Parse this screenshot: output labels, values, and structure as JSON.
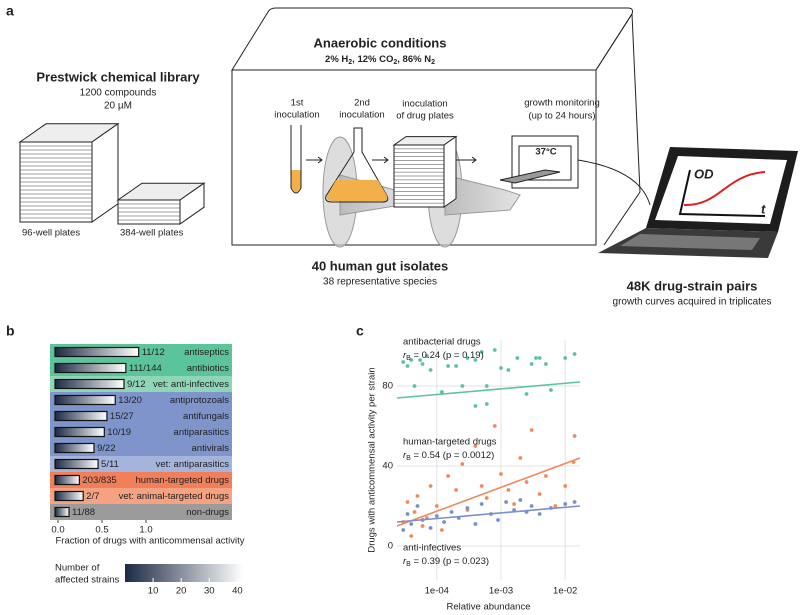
{
  "panel_a": {
    "label": "a",
    "library": {
      "title": "Prestwick chemical library",
      "lines": [
        "1200 compounds",
        "20 µM"
      ],
      "plates": [
        "96-well plates",
        "384-well plates"
      ]
    },
    "chamber": {
      "title": "Anaerobic conditions",
      "gases": [
        {
          "text": "2% H",
          "sub": "2"
        },
        {
          "text": ", 12% CO",
          "sub": "2"
        },
        {
          "text": ", 86% N",
          "sub": "2"
        }
      ]
    },
    "steps": [
      {
        "lines": [
          "1st",
          "inoculation"
        ]
      },
      {
        "lines": [
          "2nd",
          "inoculation"
        ]
      },
      {
        "lines": [
          "inoculation",
          "of drug plates"
        ]
      },
      {
        "lines": [
          "growth monitoring",
          "(up to 24 hours)"
        ]
      }
    ],
    "incubator": "37°C",
    "isolates": {
      "title": "40 human gut isolates",
      "subtitle": "38 representative species"
    },
    "output": {
      "title": "48K drug-strain pairs",
      "subtitle": "growth curves acquired in triplicates"
    },
    "plot_axes": {
      "y": "OD",
      "x": "t"
    }
  },
  "chart_data": [
    {
      "type": "bar",
      "label": "b",
      "orientation": "horizontal",
      "categories": [
        "antiseptics",
        "antibiotics",
        "vet: anti-infectives",
        "antiprotozoals",
        "antifungals",
        "antiparasitics",
        "antivirals",
        "vet: antiparasitics",
        "human-targeted drugs",
        "vet: animal-targeted drugs",
        "non-drugs"
      ],
      "values": [
        0.917,
        0.771,
        0.75,
        0.65,
        0.556,
        0.526,
        0.409,
        0.455,
        0.243,
        0.286,
        0.125
      ],
      "value_labels": [
        "11/12",
        "111/144",
        "9/12",
        "13/20",
        "15/27",
        "10/19",
        "9/22",
        "5/11",
        "203/835",
        "2/7",
        "11/88"
      ],
      "colors": [
        "#5cc49a",
        "#5cc49a",
        "#8fd6b7",
        "#7e94cb",
        "#7e94cb",
        "#7e94cb",
        "#7e94cb",
        "#a5b4dc",
        "#f07f5a",
        "#f4a282",
        "#9b9b9b"
      ],
      "xlim": [
        0,
        1
      ],
      "xticks": [
        {
          "value": 0,
          "label": "0.0"
        },
        0.5,
        {
          "value": 1,
          "label": "1.0"
        }
      ],
      "xlabel": "Fraction of drugs with anticommensal activity",
      "colorbar": {
        "title": [
          "Number of",
          "affected strains"
        ],
        "lim": [
          0,
          42
        ],
        "ticks": [
          10,
          20,
          30,
          40
        ],
        "colors": [
          "#1c2a44",
          "#ffffff"
        ]
      }
    },
    {
      "type": "scatter",
      "label": "c",
      "xscale": "log",
      "grid": true,
      "xlim": [
        2.4e-05,
        0.017
      ],
      "ylim": [
        -17,
        103
      ],
      "xticks": [
        {
          "value": 0.0001,
          "label": "1e-04"
        },
        {
          "value": 0.001,
          "label": "1e-03"
        },
        {
          "value": 0.01,
          "label": "1e-02"
        }
      ],
      "yticks": [
        0,
        40,
        80
      ],
      "xlabel": "Relative abundance",
      "ylabel": "Drugs with anticommensal activity per strain",
      "series": [
        {
          "name": "antibacterial drugs",
          "color": "#5fc39c",
          "stat": {
            "symbol": "r",
            "subscript": "B",
            "text": " = 0.24 (p = 0.19)"
          },
          "x": [
            3e-05,
            3.5e-05,
            4e-05,
            4.5e-05,
            5.5e-05,
            6e-05,
            7e-05,
            8e-05,
            0.00012,
            0.00015,
            0.0002,
            0.00025,
            0.0003,
            0.0004,
            0.0005,
            0.0006,
            0.0008,
            0.001,
            0.0013,
            0.0018,
            0.0025,
            0.003,
            0.0035,
            0.004,
            0.005,
            0.006,
            0.01,
            0.014,
            0.0004,
            0.0006
          ],
          "values": [
            92,
            90,
            93,
            80,
            93,
            91,
            95,
            88,
            77,
            90,
            90,
            80,
            94,
            93,
            97,
            80,
            98,
            89,
            88,
            94,
            76,
            91,
            94,
            94,
            91,
            78,
            94,
            96,
            70,
            71
          ],
          "fit": {
            "x": [
              2.4e-05,
              0.017
            ],
            "values": [
              74,
              82
            ]
          }
        },
        {
          "name": "human-targeted drugs",
          "color": "#f08a5c",
          "stat": {
            "symbol": "r",
            "subscript": "B",
            "text": " = 0.54 (p = 0.0012)"
          },
          "x": [
            3e-05,
            3.5e-05,
            4e-05,
            4.5e-05,
            5e-05,
            6e-05,
            7e-05,
            8e-05,
            0.0001,
            0.00012,
            0.00015,
            0.0002,
            0.00025,
            0.0003,
            0.0004,
            0.0005,
            0.0006,
            0.0008,
            0.001,
            0.0013,
            0.0016,
            0.002,
            0.0025,
            0.003,
            0.004,
            0.005,
            0.007,
            0.01,
            0.014,
            0.0135
          ],
          "values": [
            12,
            22,
            5,
            17,
            25,
            10,
            14,
            30,
            20,
            8,
            35,
            28,
            41,
            18,
            50,
            30,
            24,
            60,
            36,
            28,
            21,
            44,
            32,
            58,
            26,
            35,
            20,
            30,
            55,
            42
          ],
          "fit": {
            "x": [
              2.4e-05,
              0.017
            ],
            "values": [
              10,
              44
            ]
          }
        },
        {
          "name": "anti-infectives",
          "color": "#7b8fca",
          "stat": {
            "symbol": "r",
            "subscript": "B",
            "text": " = 0.39 (p = 0.023)"
          },
          "x": [
            3e-05,
            3.5e-05,
            4e-05,
            5e-05,
            6e-05,
            8e-05,
            0.0001,
            0.00013,
            0.00017,
            0.00022,
            0.0003,
            0.0004,
            0.0005,
            0.0007,
            0.0009,
            0.0012,
            0.0016,
            0.002,
            0.0025,
            0.003,
            0.004,
            0.006,
            0.01,
            0.014
          ],
          "values": [
            8,
            16,
            11,
            20,
            13,
            9,
            15,
            12,
            17,
            14,
            19,
            11,
            21,
            16,
            13,
            22,
            18,
            23,
            17,
            20,
            16,
            19,
            21,
            22
          ],
          "fit": {
            "x": [
              2.4e-05,
              0.017
            ],
            "values": [
              12,
              20
            ]
          }
        }
      ]
    }
  ]
}
